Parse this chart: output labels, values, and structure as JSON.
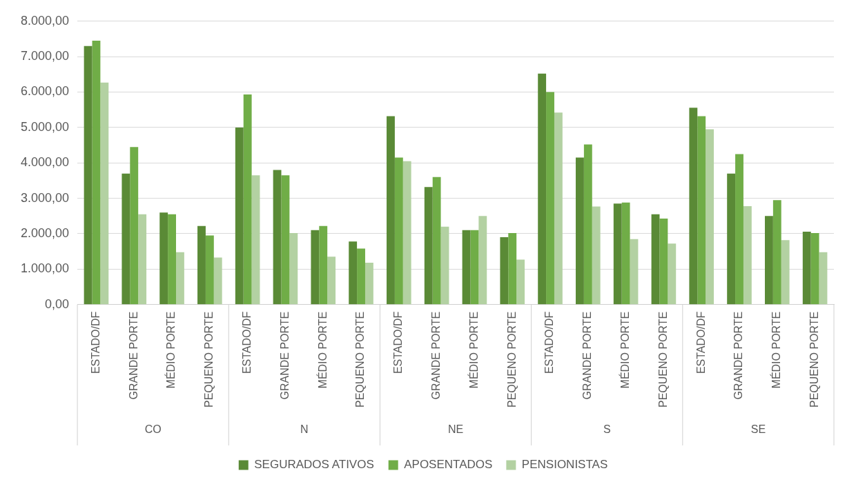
{
  "chart_data": {
    "type": "bar",
    "categories": [
      "ESTADO/DF",
      "GRANDE PORTE",
      "MÉDIO PORTE",
      "PEQUENO PORTE",
      "ESTADO/DF",
      "GRANDE PORTE",
      "MÉDIO PORTE",
      "PEQUENO PORTE",
      "ESTADO/DF",
      "GRANDE PORTE",
      "MÉDIO PORTE",
      "PEQUENO PORTE",
      "ESTADO/DF",
      "GRANDE PORTE",
      "MÉDIO PORTE",
      "PEQUENO PORTE",
      "ESTADO/DF",
      "GRANDE PORTE",
      "MÉDIO PORTE",
      "PEQUENO PORTE"
    ],
    "annotations": [
      "CO",
      "N",
      "NE",
      "S",
      "SE"
    ],
    "series": [
      {
        "name": "SEGURADOS ATIVOS",
        "color": "#5a8a36",
        "values": [
          7300,
          3700,
          2600,
          2220,
          5000,
          3800,
          2100,
          1780,
          5320,
          3320,
          2100,
          1900,
          6520,
          4150,
          2850,
          2550,
          5560,
          3700,
          2500,
          2060
        ]
      },
      {
        "name": "APOSENTADOS",
        "color": "#70ad47",
        "values": [
          7450,
          4450,
          2550,
          1950,
          5930,
          3650,
          2220,
          1580,
          4150,
          3600,
          2100,
          2020,
          6000,
          4520,
          2880,
          2430,
          5320,
          4250,
          2950,
          2020
        ]
      },
      {
        "name": "PENSIONISTAS",
        "color": "#b3d1a2",
        "values": [
          6270,
          2550,
          1480,
          1330,
          3650,
          2020,
          1350,
          1180,
          4050,
          2200,
          2500,
          1270,
          5420,
          2770,
          1850,
          1720,
          4950,
          2780,
          1820,
          1480
        ]
      }
    ],
    "ylim": [
      0,
      8000
    ],
    "yticks": [
      {
        "value": 0,
        "label": "0,00"
      },
      {
        "value": 1000,
        "label": "1.000,00"
      },
      {
        "value": 2000,
        "label": "2.000,00"
      },
      {
        "value": 3000,
        "label": "3.000,00"
      },
      {
        "value": 4000,
        "label": "4.000,00"
      },
      {
        "value": 5000,
        "label": "5.000,00"
      },
      {
        "value": 6000,
        "label": "6.000,00"
      },
      {
        "value": 7000,
        "label": "7.000,00"
      },
      {
        "value": 8000,
        "label": "8.000,00"
      }
    ],
    "grid": "y",
    "legend": "bottom"
  }
}
